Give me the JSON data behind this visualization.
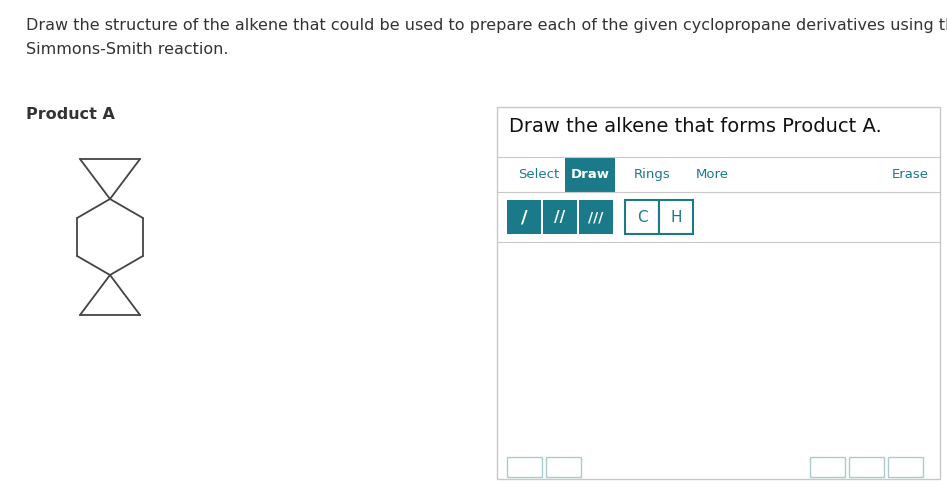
{
  "bg_color": "#ffffff",
  "page_text_line1": "Draw the structure of the alkene that could be used to prepare each of the given cyclopropane derivatives using the",
  "page_text_line2": "Simmons-Smith reaction.",
  "text_color": "#333333",
  "page_text_fontsize": 11.5,
  "product_label": "Product A",
  "product_label_fontsize": 11.5,
  "panel_border_color": "#c8c8c8",
  "panel_title": "Draw the alkene that forms Product A.",
  "panel_title_fontsize": 14,
  "teal": "#1a7a8a",
  "teal_dark": "#1a7a8a",
  "select_text": "Select",
  "draw_text": "Draw",
  "rings_text": "Rings",
  "more_text": "More",
  "erase_text": "Erase",
  "mol_line_color": "#444444",
  "mol_lw": 1.3
}
